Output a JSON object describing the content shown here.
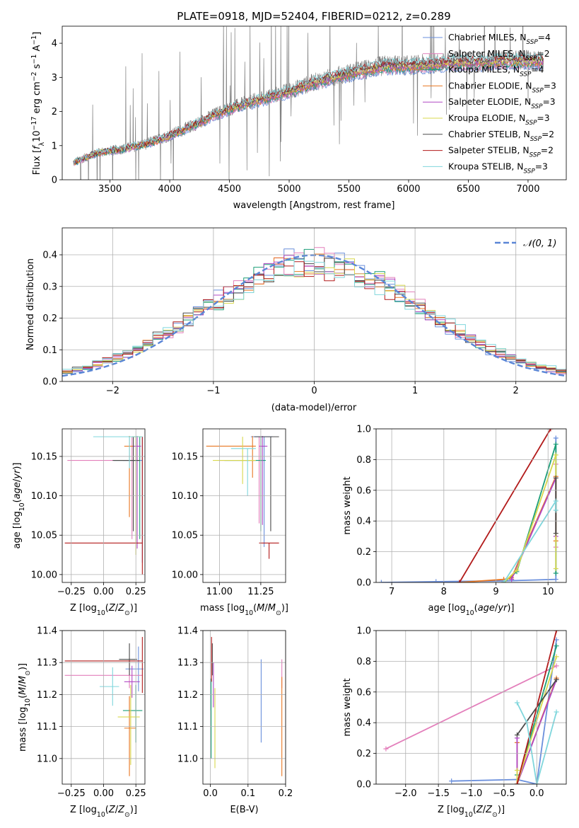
{
  "colors": {
    "chabrier_miles": "#6a8fdc",
    "salpeter_miles": "#e37fbb",
    "kroupa_miles": "#1b9e77",
    "chabrier_elodie": "#e87722",
    "salpeter_elodie": "#b048c4",
    "kroupa_elodie": "#d8d84e",
    "chabrier_stelib": "#4a4a4a",
    "salpeter_stelib": "#b21a1a",
    "kroupa_stelib": "#7fd6dc",
    "data_spectrum": "#808080",
    "grid": "#b0b0b0"
  },
  "chart_data": [
    {
      "type": "line",
      "title": "PLATE=0918, MJD=52404, FIBERID=0212, z=0.289",
      "xlabel": "wavelength [Angstrom, rest frame]",
      "ylabel": "Flux [f_λ 10^-17 erg cm^-2 s^-1 A^-1]",
      "xlim": [
        3100,
        7320
      ],
      "ylim": [
        0,
        4.5
      ],
      "xticks": [
        "3500",
        "4000",
        "4500",
        "5000",
        "5500",
        "6000",
        "6500",
        "7000"
      ],
      "yticks": [
        "0",
        "1",
        "2",
        "3",
        "4"
      ],
      "grid": false,
      "legend_position": "top-right",
      "data_series": {
        "name": "data",
        "x_range": [
          3190,
          7130
        ],
        "continuum_x": [
          3190,
          3400,
          3600,
          3800,
          4000,
          4200,
          4400,
          4600,
          4800,
          5000,
          5200,
          5400,
          5600,
          5800,
          6000,
          6200,
          6400,
          6600,
          6800,
          7000,
          7130
        ],
        "continuum_y": [
          0.5,
          0.8,
          0.9,
          1.05,
          1.3,
          1.6,
          1.95,
          2.2,
          2.4,
          2.6,
          2.85,
          3.05,
          3.2,
          3.35,
          3.35,
          3.4,
          3.45,
          3.45,
          3.5,
          3.5,
          3.5
        ]
      },
      "series": [
        {
          "name": "Chabrier MILES",
          "legend_label": "Chabrier MILES, N_SSP=4",
          "color_key": "chabrier_miles"
        },
        {
          "name": "Salpeter MILES",
          "legend_label": "Salpeter MILES, N_SSP=2",
          "color_key": "salpeter_miles"
        },
        {
          "name": "Kroupa MILES",
          "legend_label": "Kroupa MILES, N_SSP=4",
          "color_key": "kroupa_miles"
        },
        {
          "name": "Chabrier ELODIE",
          "legend_label": "Chabrier ELODIE, N_SSP=3",
          "color_key": "chabrier_elodie"
        },
        {
          "name": "Salpeter ELODIE",
          "legend_label": "Salpeter ELODIE, N_SSP=3",
          "color_key": "salpeter_elodie"
        },
        {
          "name": "Kroupa ELODIE",
          "legend_label": "Kroupa ELODIE, N_SSP=3",
          "color_key": "kroupa_elodie"
        },
        {
          "name": "Chabrier STELIB",
          "legend_label": "Chabrier STELIB, N_SSP=2",
          "color_key": "chabrier_stelib"
        },
        {
          "name": "Salpeter STELIB",
          "legend_label": "Salpeter STELIB, N_SSP=2",
          "color_key": "salpeter_stelib"
        },
        {
          "name": "Kroupa STELIB",
          "legend_label": "Kroupa STELIB, N_SSP=3",
          "color_key": "kroupa_stelib"
        }
      ]
    },
    {
      "type": "line",
      "xlabel": "(data-model)/error",
      "ylabel": "Normed distribution",
      "xlim": [
        -2.5,
        2.5
      ],
      "ylim": [
        0,
        0.485
      ],
      "xticks": [
        "−2",
        "−1",
        "0",
        "1",
        "2"
      ],
      "yticks": [
        "0.0",
        "0.1",
        "0.2",
        "0.3",
        "0.4"
      ],
      "grid": true,
      "legend_position": "top-right",
      "reference_curve": {
        "name": "N(0,1)",
        "legend_label": "𝒩(0, 1)",
        "style": "dashed",
        "color": "#5a86d6",
        "mean": 0,
        "sigma": 1
      },
      "histogram": {
        "bin_width": 0.1,
        "x_start": -2.5,
        "x_end": 2.5,
        "shape": "approximately gaussian, sigma 1.05-1.15, peak ~0.40-0.46",
        "series_color_keys": [
          "chabrier_miles",
          "salpeter_miles",
          "kroupa_miles",
          "chabrier_elodie",
          "salpeter_elodie",
          "kroupa_elodie",
          "chabrier_stelib",
          "salpeter_stelib",
          "kroupa_stelib"
        ]
      }
    },
    {
      "type": "scatter",
      "xlabel": "Z [log10(Z/Z⊙)]",
      "ylabel": "age  [log10(age/yr)]",
      "xlim": [
        -0.32,
        0.32
      ],
      "ylim": [
        9.99,
        10.185
      ],
      "xticks": [
        "−0.25",
        "0.00",
        "0.25"
      ],
      "yticks": [
        "10.00",
        "10.05",
        "10.10",
        "10.15"
      ],
      "grid": true,
      "errorbars": [
        {
          "color_key": "chabrier_miles",
          "x": 0.3,
          "y": 10.145,
          "xerr": [
            0.15,
            0.0
          ],
          "yerr": [
            0.13,
            0.03
          ]
        },
        {
          "color_key": "salpeter_miles",
          "x": 0.22,
          "y": 10.145,
          "xerr": [
            0.5,
            0.03
          ],
          "yerr": [
            0.1,
            0.03
          ]
        },
        {
          "color_key": "kroupa_miles",
          "x": 0.28,
          "y": 10.145,
          "xerr": [
            0.2,
            0.0
          ],
          "yerr": [
            0.1,
            0.03
          ]
        },
        {
          "color_key": "chabrier_elodie",
          "x": 0.2,
          "y": 10.163,
          "xerr": [
            0.04,
            0.03
          ],
          "yerr": [
            0.09,
            0.013
          ]
        },
        {
          "color_key": "salpeter_elodie",
          "x": 0.26,
          "y": 10.163,
          "xerr": [
            0.03,
            0.03
          ],
          "yerr": [
            0.13,
            0.013
          ]
        },
        {
          "color_key": "kroupa_elodie",
          "x": 0.25,
          "y": 10.175,
          "xerr": [
            0.03,
            0.04
          ],
          "yerr": [
            0.15,
            0.0
          ]
        },
        {
          "color_key": "chabrier_stelib",
          "x": 0.23,
          "y": 10.145,
          "xerr": [
            0.16,
            0.05
          ],
          "yerr": [
            0.09,
            0.03
          ]
        },
        {
          "color_key": "salpeter_stelib",
          "x": 0.3,
          "y": 10.04,
          "xerr": [
            0.6,
            0.0
          ],
          "yerr": [
            0.04,
            0.135
          ]
        },
        {
          "color_key": "kroupa_stelib",
          "x": 0.2,
          "y": 10.175,
          "xerr": [
            0.28,
            0.1
          ],
          "yerr": [
            0.04,
            0.0
          ]
        }
      ]
    },
    {
      "type": "scatter",
      "xlabel": "mass [log10(M/M⊙)]",
      "xlim": [
        10.9,
        11.4
      ],
      "ylim": [
        9.99,
        10.185
      ],
      "xticks": [
        "11.00",
        "11.25"
      ],
      "yticks": [
        "10.00",
        "10.05",
        "10.10",
        "10.15"
      ],
      "grid": true,
      "errorbars": [
        {
          "color_key": "chabrier_miles",
          "x": 11.27,
          "y": 10.175,
          "xerr": [
            0.08,
            0.05
          ],
          "yerr": [
            0.14,
            0.0
          ]
        },
        {
          "color_key": "salpeter_miles",
          "x": 11.24,
          "y": 10.145,
          "xerr": [
            0.24,
            0.03
          ],
          "yerr": [
            0.08,
            0.03
          ]
        },
        {
          "color_key": "kroupa_miles",
          "x": 11.25,
          "y": 10.145,
          "xerr": [
            0.22,
            0.03
          ],
          "yerr": [
            0.09,
            0.03
          ]
        },
        {
          "color_key": "chabrier_elodie",
          "x": 11.2,
          "y": 10.163,
          "xerr": [
            0.28,
            0.02
          ],
          "yerr": [
            0.04,
            0.013
          ]
        },
        {
          "color_key": "salpeter_elodie",
          "x": 11.26,
          "y": 10.163,
          "xerr": [
            0.02,
            0.03
          ],
          "yerr": [
            0.1,
            0.013
          ]
        },
        {
          "color_key": "kroupa_elodie",
          "x": 11.14,
          "y": 10.145,
          "xerr": [
            0.18,
            0.08
          ],
          "yerr": [
            0.03,
            0.03
          ]
        },
        {
          "color_key": "chabrier_stelib",
          "x": 11.31,
          "y": 10.175,
          "xerr": [
            0.1,
            0.05
          ],
          "yerr": [
            0.12,
            0.0
          ]
        },
        {
          "color_key": "salpeter_stelib",
          "x": 11.3,
          "y": 10.04,
          "xerr": [
            0.06,
            0.06
          ],
          "yerr": [
            0.02,
            0.0
          ]
        },
        {
          "color_key": "kroupa_stelib",
          "x": 11.17,
          "y": 10.16,
          "xerr": [
            0.1,
            0.05
          ],
          "yerr": [
            0.06,
            0.0
          ]
        }
      ]
    },
    {
      "type": "line",
      "xlabel": "age  [log10(age/yr)]",
      "ylabel": "mass weight",
      "xlim": [
        6.7,
        10.35
      ],
      "ylim": [
        0,
        1.0
      ],
      "xticks": [
        "7",
        "8",
        "9",
        "10"
      ],
      "yticks": [
        "0.0",
        "0.2",
        "0.4",
        "0.6",
        "0.8",
        "1.0"
      ],
      "grid": true,
      "series": [
        {
          "color_key": "chabrier_miles",
          "x": [
            6.8,
            7.85,
            9.15,
            10.15,
            10.15
          ],
          "y": [
            0.0,
            0.005,
            0.01,
            0.02,
            0.94
          ]
        },
        {
          "color_key": "salpeter_miles",
          "x": [
            10.15,
            10.15
          ],
          "y": [
            0.23,
            0.77
          ]
        },
        {
          "color_key": "kroupa_miles",
          "x": [
            9.15,
            9.4,
            10.15,
            10.15
          ],
          "y": [
            0.0,
            0.07,
            0.9,
            0.06
          ]
        },
        {
          "color_key": "chabrier_elodie",
          "x": [
            8.3,
            9.15,
            9.3,
            10.15,
            10.15
          ],
          "y": [
            0.0,
            0.02,
            0.03,
            0.69,
            0.27
          ]
        },
        {
          "color_key": "salpeter_elodie",
          "x": [
            9.3,
            10.15,
            10.15
          ],
          "y": [
            0.02,
            0.68,
            0.3
          ]
        },
        {
          "color_key": "kroupa_elodie",
          "x": [
            9.15,
            9.4,
            10.15,
            10.15
          ],
          "y": [
            0.0,
            0.08,
            0.83,
            0.09
          ]
        },
        {
          "color_key": "chabrier_stelib",
          "x": [
            10.15,
            10.15
          ],
          "y": [
            0.32,
            0.68
          ]
        },
        {
          "color_key": "salpeter_stelib",
          "x": [
            8.3,
            10.05
          ],
          "y": [
            0.0,
            1.0
          ]
        },
        {
          "color_key": "kroupa_stelib",
          "x": [
            9.15,
            10.15,
            10.15
          ],
          "y": [
            0.0,
            0.53,
            0.47
          ]
        }
      ]
    },
    {
      "type": "scatter",
      "xlabel": "Z [log10(Z/Z⊙)]",
      "ylabel": "mass [log10(M/M⊙)]",
      "xlim": [
        -0.32,
        0.32
      ],
      "ylim": [
        10.92,
        11.4
      ],
      "xticks": [
        "−0.25",
        "0.00",
        "0.25"
      ],
      "yticks": [
        "11.0",
        "11.1",
        "11.2",
        "11.3",
        "11.4"
      ],
      "grid": true,
      "errorbars": [
        {
          "color_key": "chabrier_miles",
          "x": 0.27,
          "y": 11.28,
          "xerr": [
            0.1,
            0.04
          ],
          "yerr": [
            0.07,
            0.07
          ]
        },
        {
          "color_key": "salpeter_miles",
          "x": 0.2,
          "y": 11.26,
          "xerr": [
            0.5,
            0.1
          ],
          "yerr": [
            0.04,
            0.04
          ]
        },
        {
          "color_key": "kroupa_miles",
          "x": 0.25,
          "y": 11.15,
          "xerr": [
            0.1,
            0.05
          ],
          "yerr": [
            0.1,
            0.08
          ]
        },
        {
          "color_key": "chabrier_elodie",
          "x": 0.2,
          "y": 11.095,
          "xerr": [
            0.04,
            0.05
          ],
          "yerr": [
            0.15,
            0.1
          ]
        },
        {
          "color_key": "salpeter_elodie",
          "x": 0.22,
          "y": 11.24,
          "xerr": [
            0.06,
            0.06
          ],
          "yerr": [
            0.05,
            0.05
          ]
        },
        {
          "color_key": "kroupa_elodie",
          "x": 0.21,
          "y": 11.13,
          "xerr": [
            0.1,
            0.07
          ],
          "yerr": [
            0.15,
            0.1
          ]
        },
        {
          "color_key": "chabrier_stelib",
          "x": 0.2,
          "y": 11.31,
          "xerr": [
            0.08,
            0.06
          ],
          "yerr": [
            0.05,
            0.05
          ]
        },
        {
          "color_key": "salpeter_stelib",
          "x": 0.3,
          "y": 11.305,
          "xerr": [
            0.6,
            0.0
          ],
          "yerr": [
            0.1,
            0.075
          ]
        },
        {
          "color_key": "kroupa_stelib",
          "x": 0.07,
          "y": 11.225,
          "xerr": [
            0.1,
            0.05
          ],
          "yerr": [
            0.06,
            0.06
          ]
        }
      ]
    },
    {
      "type": "scatter",
      "xlabel": "E(B-V)",
      "xlim": [
        -0.02,
        0.2
      ],
      "ylim": [
        10.92,
        11.4
      ],
      "xticks": [
        "0.0",
        "0.1",
        "0.2"
      ],
      "yticks": [
        "11.0",
        "11.1",
        "11.2",
        "11.3",
        "11.4"
      ],
      "grid": true,
      "errorbars": [
        {
          "color_key": "chabrier_miles",
          "x": 0.135,
          "y": 11.18,
          "xerr": [
            0,
            0
          ],
          "yerr": [
            0.13,
            0.13
          ]
        },
        {
          "color_key": "salpeter_miles",
          "x": 0.19,
          "y": 11.27,
          "xerr": [
            0,
            0
          ],
          "yerr": [
            0.05,
            0.04
          ]
        },
        {
          "color_key": "kroupa_miles",
          "x": 0.002,
          "y": 11.2,
          "xerr": [
            0,
            0
          ],
          "yerr": [
            0.2,
            0.05
          ]
        },
        {
          "color_key": "chabrier_elodie",
          "x": 0.19,
          "y": 11.095,
          "xerr": [
            0,
            0
          ],
          "yerr": [
            0.15,
            0.16
          ]
        },
        {
          "color_key": "salpeter_elodie",
          "x": 0.008,
          "y": 11.26,
          "xerr": [
            0,
            0
          ],
          "yerr": [
            0.1,
            0.04
          ]
        },
        {
          "color_key": "kroupa_elodie",
          "x": 0.012,
          "y": 11.12,
          "xerr": [
            0,
            0
          ],
          "yerr": [
            0.15,
            0.1
          ]
        },
        {
          "color_key": "chabrier_stelib",
          "x": 0.005,
          "y": 11.31,
          "xerr": [
            0,
            0
          ],
          "yerr": [
            0.05,
            0.05
          ]
        },
        {
          "color_key": "salpeter_stelib",
          "x": 0.003,
          "y": 11.3,
          "xerr": [
            0,
            0
          ],
          "yerr": [
            0.06,
            0.08
          ]
        },
        {
          "color_key": "kroupa_stelib",
          "x": 0.0,
          "y": 11.2,
          "xerr": [
            0,
            0
          ],
          "yerr": [
            0.05,
            0.05
          ]
        }
      ]
    },
    {
      "type": "line",
      "xlabel": "Z [log10(Z/Z⊙)]",
      "ylabel": "mass weight",
      "xlim": [
        -2.45,
        0.45
      ],
      "ylim": [
        0,
        1.0
      ],
      "xticks": [
        "−2.0",
        "−1.5",
        "−1.0",
        "−0.5",
        "0.0"
      ],
      "yticks": [
        "0.0",
        "0.2",
        "0.4",
        "0.6",
        "0.8",
        "1.0"
      ],
      "grid": true,
      "series": [
        {
          "color_key": "chabrier_miles",
          "x": [
            -1.3,
            -0.3,
            0.0,
            0.3
          ],
          "y": [
            0.02,
            0.03,
            0.0,
            0.94
          ]
        },
        {
          "color_key": "salpeter_miles",
          "x": [
            -2.3,
            0.3
          ],
          "y": [
            0.23,
            0.77
          ]
        },
        {
          "color_key": "kroupa_miles",
          "x": [
            -0.3,
            -0.3,
            0.3
          ],
          "y": [
            0.06,
            0.0,
            0.9
          ]
        },
        {
          "color_key": "chabrier_elodie",
          "x": [
            -0.3,
            -0.3,
            0.3
          ],
          "y": [
            0.27,
            0.0,
            0.69
          ]
        },
        {
          "color_key": "salpeter_elodie",
          "x": [
            -0.3,
            -0.3,
            0.3
          ],
          "y": [
            0.3,
            0.0,
            0.68
          ]
        },
        {
          "color_key": "kroupa_elodie",
          "x": [
            -0.3,
            -0.3,
            0.3
          ],
          "y": [
            0.09,
            0.0,
            0.83
          ]
        },
        {
          "color_key": "chabrier_stelib",
          "x": [
            -0.3,
            0.3
          ],
          "y": [
            0.32,
            0.68
          ]
        },
        {
          "color_key": "salpeter_stelib",
          "x": [
            -0.3,
            0.3
          ],
          "y": [
            0.0,
            1.0
          ]
        },
        {
          "color_key": "kroupa_stelib",
          "x": [
            -0.3,
            -0.15,
            0.0,
            0.3
          ],
          "y": [
            0.53,
            0.4,
            0.0,
            0.47
          ]
        }
      ]
    }
  ]
}
